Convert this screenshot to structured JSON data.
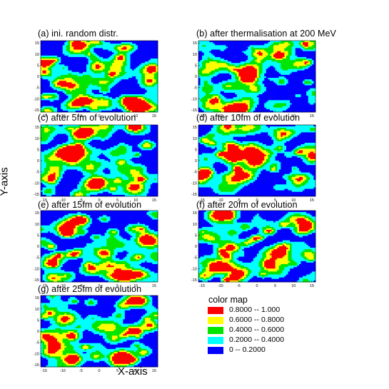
{
  "figure": {
    "xlabel": "X-axis",
    "ylabel": "Y-axis"
  },
  "legend": {
    "title": "color map",
    "entries": [
      {
        "label": "0.8000  --  1.000",
        "color": "#ff0000"
      },
      {
        "label": "0.6000  --  0.8000",
        "color": "#ffff00"
      },
      {
        "label": "0.4000  --  0.6000",
        "color": "#00e600"
      },
      {
        "label": "0.2000  --  0.4000",
        "color": "#00ffff"
      },
      {
        "label": "0  --  0.2000",
        "color": "#0000ff"
      }
    ]
  },
  "chart_data": [
    {
      "type": "heatmap",
      "title": "(a) ini. random distr.",
      "xlim": [
        -16,
        16
      ],
      "ylim": [
        -16,
        16
      ],
      "xticks": [
        -15,
        -10,
        -5,
        0,
        5,
        10,
        15
      ],
      "yticks": [
        -15,
        -10,
        -5,
        0,
        5,
        10,
        15
      ],
      "seed": 11
    },
    {
      "type": "heatmap",
      "title": "(b) after thermalisation at 200 MeV",
      "xlim": [
        -16,
        16
      ],
      "ylim": [
        -16,
        16
      ],
      "xticks": [
        -15,
        -10,
        -5,
        0,
        5,
        10,
        15
      ],
      "yticks": [
        -15,
        -10,
        -5,
        0,
        5,
        10,
        15
      ],
      "seed": 23
    },
    {
      "type": "heatmap",
      "title": "(c) after 5fm of evolution",
      "xlim": [
        -16,
        16
      ],
      "ylim": [
        -16,
        16
      ],
      "xticks": [
        -15,
        -10,
        -5,
        0,
        5,
        10,
        15
      ],
      "yticks": [
        -15,
        -10,
        -5,
        0,
        5,
        10,
        15
      ],
      "seed": 37
    },
    {
      "type": "heatmap",
      "title": "(d) after 10fm of evolution",
      "xlim": [
        -16,
        16
      ],
      "ylim": [
        -16,
        16
      ],
      "xticks": [
        -15,
        -10,
        -5,
        0,
        5,
        10,
        15
      ],
      "yticks": [
        -15,
        -10,
        -5,
        0,
        5,
        10,
        15
      ],
      "seed": 41
    },
    {
      "type": "heatmap",
      "title": "(e) after 15fm of evolution",
      "xlim": [
        -16,
        16
      ],
      "ylim": [
        -16,
        16
      ],
      "xticks": [
        -15,
        -10,
        -5,
        0,
        5,
        10,
        15
      ],
      "yticks": [
        -15,
        -10,
        -5,
        0,
        5,
        10,
        15
      ],
      "seed": 53
    },
    {
      "type": "heatmap",
      "title": "(f) after 20fm of evolution",
      "xlim": [
        -16,
        16
      ],
      "ylim": [
        -16,
        16
      ],
      "xticks": [
        -15,
        -10,
        -5,
        0,
        5,
        10,
        15
      ],
      "yticks": [
        -15,
        -10,
        -5,
        0,
        5,
        10,
        15
      ],
      "seed": 67
    },
    {
      "type": "heatmap",
      "title": "(g) after 25fm of evolution",
      "xlim": [
        -16,
        16
      ],
      "ylim": [
        -16,
        16
      ],
      "xticks": [
        -15,
        -10,
        -5,
        0,
        5,
        10,
        15
      ],
      "yticks": [
        -15,
        -10,
        -5,
        0,
        5,
        10,
        15
      ],
      "seed": 79
    }
  ]
}
